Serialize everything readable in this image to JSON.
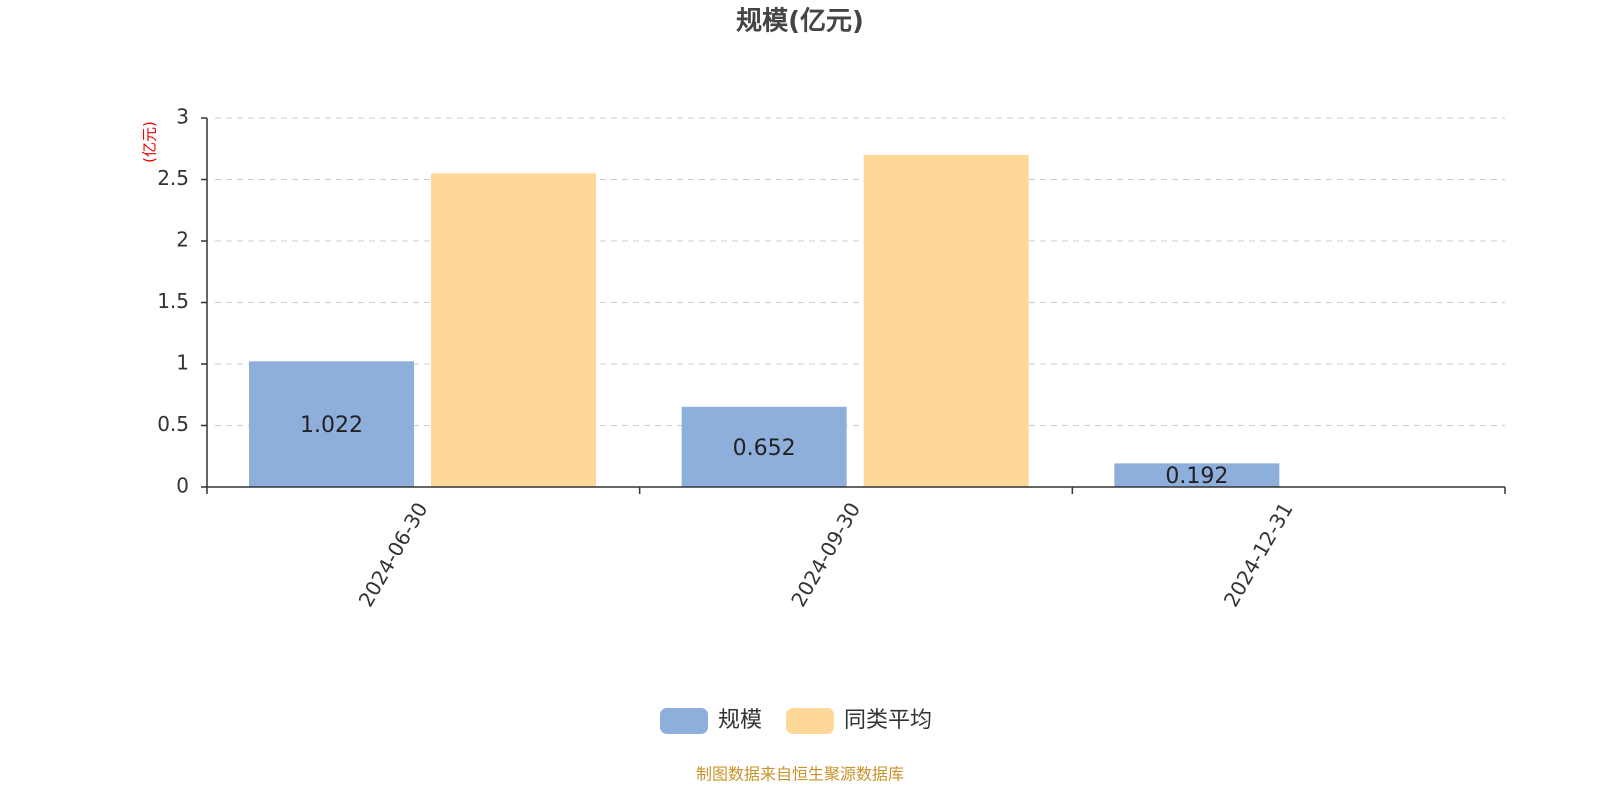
{
  "chart_data": {
    "type": "bar",
    "title": "规模(亿元)",
    "y_label": "(亿元)",
    "categories": [
      "2024-06-30",
      "2024-09-30",
      "2024-12-31"
    ],
    "series": [
      {
        "name": "规模",
        "color": "#8eaedb",
        "values": [
          1.022,
          0.652,
          0.192
        ],
        "show_labels": true
      },
      {
        "name": "同类平均",
        "color": "#fed898",
        "values": [
          2.55,
          2.7,
          null
        ],
        "show_labels": false
      }
    ],
    "ylim": [
      0,
      3
    ],
    "yticks": [
      0,
      0.5,
      1,
      1.5,
      2,
      2.5,
      3
    ],
    "grid": true,
    "legend": "bottom",
    "footer": "制图数据来自恒生聚源数据库"
  }
}
